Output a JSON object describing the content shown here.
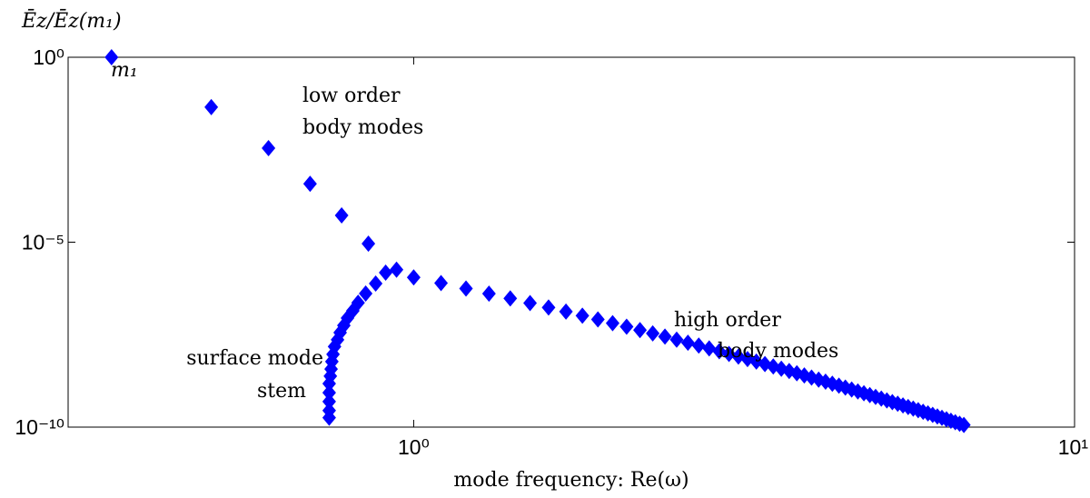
{
  "chart_data": {
    "type": "scatter",
    "y_label": "Ēz/Ēz(m₁)",
    "x_label": "mode frequency: Re(ω)",
    "xscale": "log",
    "yscale": "log",
    "xlim": [
      0.3,
      10
    ],
    "ylim": [
      1e-10,
      1
    ],
    "xticks": [
      {
        "value": 1,
        "label": "10⁰"
      },
      {
        "value": 10,
        "label": "10¹"
      }
    ],
    "yticks": [
      {
        "value": 1e-10,
        "label": "10⁻¹⁰"
      },
      {
        "value": 1e-05,
        "label": "10⁻⁵"
      },
      {
        "value": 1,
        "label": "10⁰"
      }
    ],
    "color": "#0000ff",
    "annotations": [
      "m₁",
      "low order",
      "body modes",
      "high order",
      "body modes",
      "surface mode",
      "stem"
    ],
    "x": [
      0.349,
      0.494,
      0.603,
      0.697,
      0.778,
      0.854,
      0.907,
      0.942,
      0.876,
      0.846,
      0.824,
      0.809,
      0.794,
      0.784,
      0.774,
      0.767,
      0.759,
      0.755,
      0.752,
      0.75,
      0.748,
      0.745,
      0.745,
      0.745,
      0.745,
      0.745,
      1.0,
      1.1,
      1.2,
      1.3,
      1.4,
      1.5,
      1.6,
      1.7,
      1.8,
      1.9,
      2.0,
      2.1,
      2.2,
      2.3,
      2.4,
      2.5,
      2.6,
      2.7,
      2.8,
      2.9,
      3.0,
      3.1,
      3.2,
      3.3,
      3.4,
      3.5,
      3.6,
      3.7,
      3.8,
      3.9,
      4.0,
      4.1,
      4.2,
      4.3,
      4.4,
      4.5,
      4.6,
      4.7,
      4.8,
      4.9,
      5.0,
      5.1,
      5.2,
      5.3,
      5.4,
      5.5,
      5.6,
      5.7,
      5.8,
      5.9,
      6.0,
      6.1,
      6.2,
      6.3,
      6.4,
      6.5,
      6.6,
      6.7,
      6.8
    ],
    "values": [
      1,
      0.045,
      0.0035,
      0.00038,
      5.3e-05,
      9.1e-06,
      1.5e-06,
      1.8e-06,
      7.6e-07,
      4.1e-07,
      2.3e-07,
      1.4e-07,
      8.9e-08,
      5.6e-08,
      3.6e-08,
      2.3e-08,
      1.5e-08,
      9.3e-09,
      5.9e-09,
      3.7e-09,
      2.4e-09,
      1.5e-09,
      8.5e-10,
      4.9e-10,
      2.8e-10,
      1.8e-10,
      1.12e-06,
      7.82e-07,
      5.58e-07,
      4.06e-07,
      3.01e-07,
      2.26e-07,
      1.72e-07,
      1.33e-07,
      1.03e-07,
      8.14e-08,
      6.47e-08,
      5.19e-08,
      4.19e-08,
      3.41e-08,
      2.8e-08,
      2.31e-08,
      1.91e-08,
      1.6e-08,
      1.34e-08,
      1.13e-08,
      9.53e-09,
      8.09e-09,
      6.9e-09,
      5.91e-09,
      5.08e-09,
      4.38e-09,
      3.79e-09,
      3.29e-09,
      2.86e-09,
      2.5e-09,
      2.19e-09,
      1.92e-09,
      1.69e-09,
      1.49e-09,
      1.32e-09,
      1.17e-09,
      1.04e-09,
      9.23e-10,
      8.22e-10,
      7.34e-10,
      6.56e-10,
      5.89e-10,
      5.28e-10,
      4.75e-10,
      4.28e-10,
      3.86e-10,
      3.49e-10,
      3.16e-10,
      2.86e-10,
      2.59e-10,
      2.36e-10,
      2.14e-10,
      1.95e-10,
      1.78e-10,
      1.63e-10,
      1.49e-10,
      1.36e-10,
      1.24e-10,
      1.14e-10
    ]
  }
}
